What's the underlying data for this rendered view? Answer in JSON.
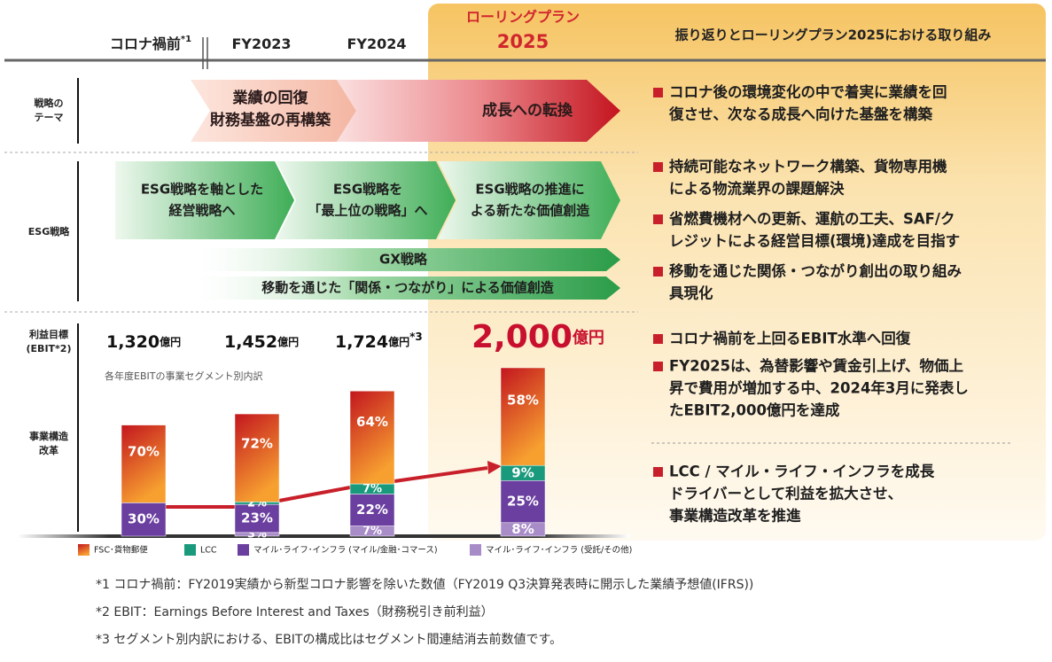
{
  "header": {
    "columns": [
      {
        "label": "コロナ禍前",
        "note": "*1"
      },
      {
        "label": "FY2023"
      },
      {
        "label": "FY2024"
      },
      {
        "label": [
          "ローリングプラン",
          "2025"
        ]
      }
    ],
    "right_title": "振り返りとローリングプラン2025における取り組み"
  },
  "theme": {
    "label": [
      "戦略の",
      "テーマ"
    ],
    "arrows": [
      [
        "業績の回復",
        "財務基盤の再構築"
      ],
      [
        "成長への転換"
      ]
    ],
    "bullets": [
      [
        "コロナ後の環境変化の中で着実に業績を回",
        "復させ、次なる成長へ向けた基盤を構築"
      ]
    ]
  },
  "esg": {
    "label": "ESG戦略",
    "arrows": [
      [
        "ESG戦略を軸とした",
        "経営戦略へ"
      ],
      [
        "ESG戦略を",
        "「最上位の戦略」へ"
      ],
      [
        "ESG戦略の推進に",
        "よる新たな価値創造"
      ]
    ],
    "bands": [
      "GX戦略",
      "移動を通じた「関係・つながり」による価値創造"
    ],
    "bullets": [
      [
        "持続可能なネットワーク構築、貨物専用機",
        "による物流業界の課題解決"
      ],
      [
        "省燃費機材への更新、運航の工夫、SAF/ク",
        "レジットによる経営目標(環境)達成を目指す"
      ],
      [
        "移動を通じた関係・つながり創出の取り組み",
        "具現化"
      ]
    ]
  },
  "ebit": {
    "label": [
      "利益目標",
      "(EBIT*2)"
    ],
    "values": [
      1320,
      1452,
      1724,
      2000
    ],
    "value_labels": [
      "1,320",
      "1,452",
      "1,724",
      "2,000"
    ],
    "unit": "億円",
    "value_notes": [
      null,
      null,
      "*3",
      null
    ],
    "bullets": [
      [
        "コロナ禍前を上回るEBIT水準へ回復"
      ],
      [
        "FY2025は、為替影響や賃金引上げ、物価上",
        "昇で費用が増加する中、2024年3月に発表し",
        "たEBIT2,000億円を達成"
      ]
    ]
  },
  "structure": {
    "label": [
      "事業構造",
      "改革"
    ],
    "bullets": [
      [
        "LCC / マイル・ライフ・インフラを成長",
        "ドライバーとして利益を拡大させ、",
        "事業構造改革を推進"
      ]
    ]
  },
  "chart_data": {
    "type": "bar",
    "stacked": true,
    "subtitle": "各年度EBITの事業セグメント別内訳",
    "series": [
      {
        "name": "FSC･貨物郵便",
        "color": "#e8452a",
        "values": [
          70,
          72,
          64,
          58
        ],
        "value_labels": [
          "70%",
          "72%",
          "64%",
          "58%"
        ]
      },
      {
        "name": "LCC",
        "color": "#1a9a7c",
        "values": [
          null,
          2,
          7,
          9
        ],
        "value_labels": [
          null,
          "2%",
          "7%",
          "9%"
        ]
      },
      {
        "name": "マイル･ライフ･インフラ (マイル/金融･コマース)",
        "color": "#6b3fa0",
        "values": [
          30,
          23,
          22,
          25
        ],
        "value_labels": [
          "30%",
          "23%",
          "22%",
          "25%"
        ]
      },
      {
        "name": "マイル･ライフ･インフラ (受託/その他)",
        "color": "#a88cc8",
        "values": [
          null,
          3,
          7,
          8
        ],
        "value_labels": [
          null,
          "3%",
          "7%",
          "8%"
        ]
      }
    ]
  },
  "footnotes": [
    "*1 コロナ禍前：FY2019実績から新型コロナ影響を除いた数値（FY2019 Q3決算発表時に開示した業績予想値(IFRS))",
    "*2 EBIT：Earnings Before Interest and Taxes（財務税引き前利益）",
    "*3 セグメント別内訳における、EBITの構成比はセグメント間連結消去前数値です。"
  ]
}
